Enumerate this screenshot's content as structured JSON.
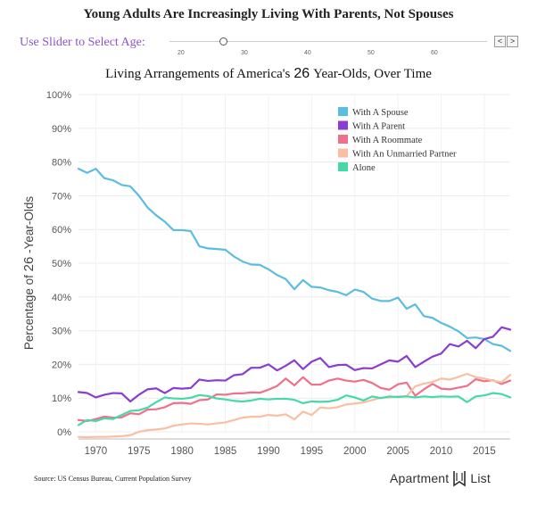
{
  "page_title": "Young Adults Are Increasingly Living With Parents, Not Spouses",
  "slider": {
    "label": "Use Slider to Select Age:",
    "ticks": [
      "20",
      "30",
      "40",
      "50",
      "60"
    ],
    "selected_age": 26,
    "prev_button": "<",
    "next_button": ">"
  },
  "source": "Source: US Census Bureau, Current Population Survey",
  "brand": {
    "left": "Apartment",
    "right": "List"
  },
  "chart_data": {
    "type": "line",
    "title_prefix": "Living Arrangements of America's",
    "title_age": "26",
    "title_suffix": "Year-Olds, Over Time",
    "ylabel_prefix": "Percentage of",
    "ylabel_age": "26",
    "ylabel_suffix": "-Year-Olds",
    "xlim": [
      1968,
      2018
    ],
    "ylim": [
      0,
      100
    ],
    "xticks": [
      1970,
      1975,
      1980,
      1985,
      1990,
      1995,
      2000,
      2005,
      2010,
      2015
    ],
    "yticks": [
      0,
      10,
      20,
      30,
      40,
      50,
      60,
      70,
      80,
      90,
      100
    ],
    "ytick_labels": [
      "0%",
      "10%",
      "20%",
      "30%",
      "40%",
      "50%",
      "60%",
      "70%",
      "80%",
      "90%",
      "100%"
    ],
    "grid": true,
    "legend_position": "top-right",
    "x": [
      1968,
      1969,
      1970,
      1971,
      1972,
      1973,
      1974,
      1975,
      1976,
      1977,
      1978,
      1979,
      1980,
      1981,
      1982,
      1983,
      1984,
      1985,
      1986,
      1987,
      1988,
      1989,
      1990,
      1991,
      1992,
      1993,
      1994,
      1995,
      1996,
      1997,
      1998,
      1999,
      2000,
      2001,
      2002,
      2003,
      2004,
      2005,
      2006,
      2007,
      2008,
      2009,
      2010,
      2011,
      2012,
      2013,
      2014,
      2015,
      2016,
      2017,
      2018
    ],
    "series": [
      {
        "name": "With A Spouse",
        "color": "#5bbde0",
        "values": [
          78,
          76.8,
          78,
          75.2,
          74.6,
          73.2,
          72.8,
          70,
          66.5,
          64.2,
          62.3,
          59.8,
          59.8,
          59.5,
          55,
          54.4,
          54.2,
          54,
          52,
          50.5,
          49.6,
          49.5,
          48.2,
          46.5,
          45.3,
          42.3,
          45,
          43,
          42.8,
          42,
          41.5,
          40.5,
          42.2,
          41.5,
          39.5,
          38.8,
          38.8,
          39.8,
          36.5,
          37.8,
          34.3,
          33.8,
          32.3,
          31.2,
          29.8,
          27.8,
          28,
          27.5,
          26,
          25.5,
          24
        ]
      },
      {
        "name": "With A Parent",
        "color": "#8a3dd0",
        "values": [
          11.8,
          11.5,
          10.2,
          11,
          11.5,
          11.4,
          9,
          11,
          12.6,
          12.9,
          11.5,
          13,
          12.8,
          13,
          15.5,
          15.1,
          15.3,
          15.2,
          16.8,
          17.1,
          19,
          19,
          20,
          18.2,
          19.6,
          21.2,
          18.6,
          20.8,
          21.9,
          19.2,
          19.8,
          19.9,
          18.3,
          18.9,
          18.8,
          20,
          21.2,
          20.8,
          22.5,
          19.2,
          20.8,
          22.3,
          23.2,
          26,
          25.3,
          27,
          24.8,
          27.5,
          28.2,
          31,
          30.3
        ]
      },
      {
        "name": "With A Roommate",
        "color": "#ef7088",
        "values": [
          3.5,
          3.2,
          3.8,
          4.5,
          4.2,
          4.3,
          5.5,
          5.2,
          6.6,
          6.7,
          7.3,
          8.5,
          8.6,
          8.3,
          9.4,
          9.6,
          11.1,
          11,
          11.4,
          11.4,
          11.7,
          11.6,
          12.5,
          13.6,
          15.8,
          13.8,
          16.2,
          14,
          14,
          15.2,
          15.8,
          15.2,
          14.9,
          15.4,
          14.5,
          13,
          12.5,
          14.1,
          14.6,
          10.7,
          12.6,
          14.2,
          12.8,
          12.6,
          13.1,
          13.6,
          15.6,
          15,
          15.3,
          14.2,
          15.2
        ]
      },
      {
        "name": "With An Unmarried Partner",
        "color": "#f8bfa2",
        "values": [
          -1.5,
          -1.6,
          -1.5,
          -1.5,
          -1.4,
          -1.3,
          -1,
          0,
          0.5,
          0.7,
          1,
          1.8,
          2.2,
          2.5,
          2.4,
          2.2,
          2.5,
          2.8,
          3.5,
          4.2,
          4.5,
          4.5,
          5,
          4.8,
          5.2,
          3.7,
          6,
          5,
          7.2,
          7,
          7.3,
          8.1,
          8.4,
          8.7,
          9.4,
          10.1,
          10.2,
          10.5,
          10.6,
          13.5,
          14.3,
          14.8,
          15.8,
          15.5,
          16.3,
          17.2,
          16.2,
          15.8,
          15.2,
          14.7,
          16.9
        ]
      },
      {
        "name": "Alone",
        "color": "#45d9a8",
        "values": [
          2,
          3.5,
          3.2,
          4,
          3.8,
          5,
          6.2,
          6.4,
          7.2,
          8.8,
          10.2,
          9.9,
          9.8,
          10.1,
          10.9,
          10.6,
          9.9,
          9.6,
          9.2,
          9,
          9.3,
          9.8,
          9.6,
          9.8,
          9.8,
          9.5,
          8.5,
          9,
          8.9,
          9,
          9.5,
          10.8,
          10.2,
          9.3,
          10.5,
          10,
          10.5,
          10.3,
          10.5,
          10.2,
          10.5,
          10.3,
          10.5,
          10.4,
          10.5,
          8.8,
          10.5,
          10.8,
          11.5,
          11.2,
          10.2
        ]
      }
    ]
  }
}
